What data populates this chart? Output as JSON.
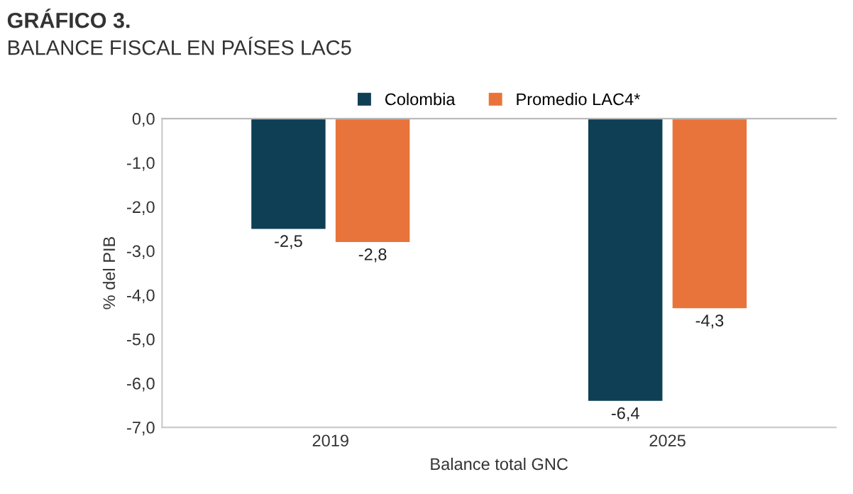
{
  "chart_data": {
    "type": "bar",
    "title": "GRÁFICO 3.",
    "subtitle": "BALANCE FISCAL EN PAÍSES LAC5",
    "xlabel": "Balance total GNC",
    "ylabel": "% del PIB",
    "categories": [
      "2019",
      "2025"
    ],
    "series": [
      {
        "name": "Colombia",
        "color": "#0e3f55",
        "values": [
          -2.5,
          -6.4
        ],
        "value_labels": [
          "-2,5",
          "-6,4"
        ]
      },
      {
        "name": "Promedio LAC4*",
        "color": "#e8743b",
        "values": [
          -2.8,
          -4.3
        ],
        "value_labels": [
          "-2,8",
          "-4,3"
        ]
      }
    ],
    "ylim": [
      -7,
      0
    ],
    "yticks": [
      {
        "value": 0,
        "label": "0,0"
      },
      {
        "value": -1,
        "label": "-1,0"
      },
      {
        "value": -2,
        "label": "-2,0"
      },
      {
        "value": -3,
        "label": "-3,0"
      },
      {
        "value": -4,
        "label": "-4,0"
      },
      {
        "value": -5,
        "label": "-5,0"
      },
      {
        "value": -6,
        "label": "-6,0"
      },
      {
        "value": -7,
        "label": "-7,0"
      }
    ],
    "grid": false,
    "legend": "top"
  }
}
